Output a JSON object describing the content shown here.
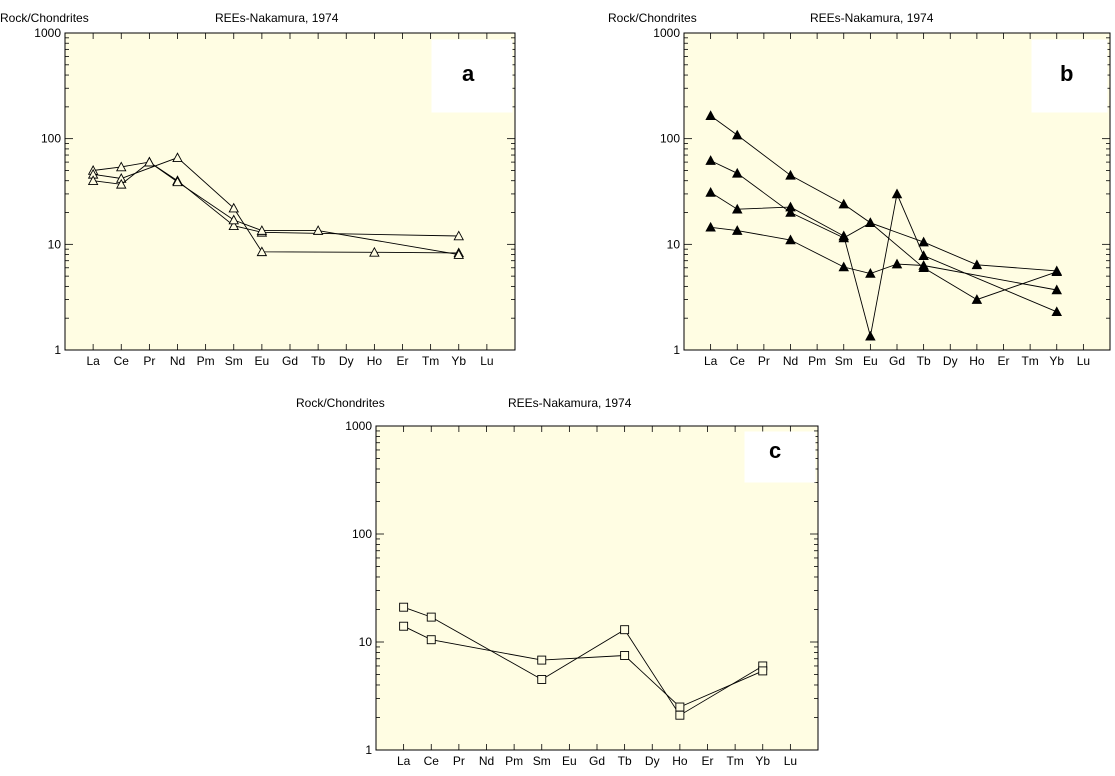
{
  "chart_data": [
    {
      "type": "line",
      "panel_label": "a",
      "ylabel": "Rock/Chondrites",
      "header": "REEs-Nakamura, 1974",
      "yscale": "log",
      "ylim": [
        1,
        1000
      ],
      "y_ticks": [
        "1",
        "10",
        "100",
        "1000"
      ],
      "categories": [
        "La",
        "Ce",
        "Pr",
        "Nd",
        "Pm",
        "Sm",
        "Eu",
        "Gd",
        "Tb",
        "Dy",
        "Ho",
        "Er",
        "Tm",
        "Yb",
        "Lu"
      ],
      "marker": "open-triangle",
      "grid": false,
      "background_color": "#fffde3",
      "series": [
        {
          "points": [
            [
              "La",
              50
            ],
            [
              "Ce",
              54
            ],
            [
              "Pr",
              60
            ],
            [
              "Nd",
              40
            ],
            [
              "Sm",
              15
            ],
            [
              "Eu",
              13
            ],
            [
              "Yb",
              12
            ]
          ]
        },
        {
          "points": [
            [
              "La",
              46
            ],
            [
              "Ce",
              42
            ],
            [
              "Nd",
              66
            ],
            [
              "Sm",
              22
            ],
            [
              "Eu",
              8.5
            ],
            [
              "Ho",
              8.4
            ],
            [
              "Yb",
              8.3
            ]
          ]
        },
        {
          "points": [
            [
              "La",
              40
            ],
            [
              "Ce",
              37
            ],
            [
              "Pr",
              60
            ],
            [
              "Nd",
              39
            ],
            [
              "Sm",
              17
            ],
            [
              "Eu",
              13.5
            ],
            [
              "Tb",
              13.5
            ],
            [
              "Yb",
              8
            ]
          ]
        }
      ]
    },
    {
      "type": "line",
      "panel_label": "b",
      "ylabel": "Rock/Chondrites",
      "header": "REEs-Nakamura, 1974",
      "yscale": "log",
      "ylim": [
        1,
        1000
      ],
      "y_ticks": [
        "1",
        "10",
        "100",
        "1000"
      ],
      "categories": [
        "La",
        "Ce",
        "Pr",
        "Nd",
        "Pm",
        "Sm",
        "Eu",
        "Gd",
        "Tb",
        "Dy",
        "Ho",
        "Er",
        "Tm",
        "Yb",
        "Lu"
      ],
      "marker": "filled-triangle",
      "grid": false,
      "background_color": "#fffde3",
      "series": [
        {
          "points": [
            [
              "La",
              165
            ],
            [
              "Ce",
              108
            ],
            [
              "Nd",
              45
            ],
            [
              "Sm",
              24
            ],
            [
              "Eu",
              16
            ],
            [
              "Tb",
              10.5
            ],
            [
              "Ho",
              6.4
            ],
            [
              "Yb",
              5.6
            ]
          ]
        },
        {
          "points": [
            [
              "La",
              62
            ],
            [
              "Ce",
              47
            ],
            [
              "Nd",
              20
            ],
            [
              "Sm",
              11.5
            ],
            [
              "Eu",
              16
            ],
            [
              "Tb",
              6
            ],
            [
              "Ho",
              3
            ],
            [
              "Yb",
              5.5
            ]
          ]
        },
        {
          "points": [
            [
              "La",
              31
            ],
            [
              "Ce",
              21.5
            ],
            [
              "Nd",
              22.5
            ],
            [
              "Sm",
              12
            ],
            [
              "Eu",
              1.35
            ],
            [
              "Gd",
              30
            ],
            [
              "Tb",
              7.8
            ],
            [
              "Yb",
              2.3
            ]
          ]
        },
        {
          "points": [
            [
              "La",
              14.5
            ],
            [
              "Ce",
              13.5
            ],
            [
              "Nd",
              11
            ],
            [
              "Sm",
              6.1
            ],
            [
              "Eu",
              5.3
            ],
            [
              "Gd",
              6.5
            ],
            [
              "Tb",
              6.3
            ],
            [
              "Yb",
              3.7
            ]
          ]
        }
      ]
    },
    {
      "type": "line",
      "panel_label": "c",
      "ylabel": "Rock/Chondrites",
      "header": "REEs-Nakamura, 1974",
      "yscale": "log",
      "ylim": [
        1,
        1000
      ],
      "y_ticks": [
        "1",
        "10",
        "100",
        "1000"
      ],
      "categories": [
        "La",
        "Ce",
        "Pr",
        "Nd",
        "Pm",
        "Sm",
        "Eu",
        "Gd",
        "Tb",
        "Dy",
        "Ho",
        "Er",
        "Tm",
        "Yb",
        "Lu"
      ],
      "marker": "open-square",
      "grid": false,
      "background_color": "#fffde3",
      "series": [
        {
          "points": [
            [
              "La",
              21
            ],
            [
              "Ce",
              17
            ],
            [
              "Sm",
              4.5
            ],
            [
              "Tb",
              13
            ],
            [
              "Ho",
              2.1
            ],
            [
              "Yb",
              6
            ]
          ]
        },
        {
          "points": [
            [
              "La",
              14
            ],
            [
              "Ce",
              10.5
            ],
            [
              "Sm",
              6.8
            ],
            [
              "Tb",
              7.5
            ],
            [
              "Ho",
              2.5
            ],
            [
              "Yb",
              5.4
            ]
          ]
        }
      ]
    }
  ]
}
